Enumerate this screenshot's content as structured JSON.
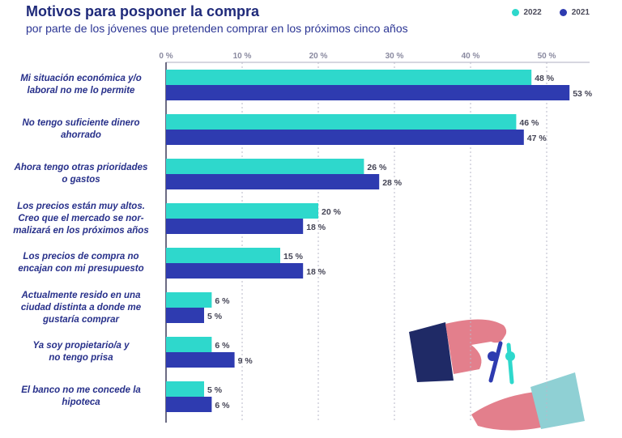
{
  "title": "Motivos para posponer la compra",
  "subtitle": "por parte de los jóvenes que pretenden comprar en los próximos cinco años",
  "legend": [
    {
      "label": "2022",
      "color": "#2ed8cc"
    },
    {
      "label": "2021",
      "color": "#2e3bb0"
    }
  ],
  "chart_data": {
    "type": "bar",
    "orientation": "horizontal",
    "title": "Motivos para posponer la compra",
    "xlim": [
      0,
      55
    ],
    "ticks": [
      "0 %",
      "10 %",
      "20 %",
      "30 %",
      "40 %",
      "50 %"
    ],
    "tick_values": [
      0,
      10,
      20,
      30,
      40,
      50
    ],
    "categories": [
      [
        "Mi situación económica y/o",
        "laboral no me lo permite"
      ],
      [
        "No tengo suficiente dinero",
        "ahorrado"
      ],
      [
        "Ahora tengo otras prioridades",
        "o gastos"
      ],
      [
        "Los precios están muy altos.",
        "Creo que el mercado se nor-",
        "malizará en los próximos años"
      ],
      [
        "Los precios de compra no",
        "encajan con mi presupuesto"
      ],
      [
        "Actualmente resido en una",
        "ciudad distinta a donde me",
        "gustaría comprar"
      ],
      [
        "Ya soy propietario/a y",
        "no tengo prisa"
      ],
      [
        "El banco no me concede la",
        "hipoteca"
      ]
    ],
    "series": [
      {
        "name": "2022",
        "color": "#2ed8cc",
        "values": [
          48,
          46,
          26,
          20,
          15,
          6,
          6,
          5
        ],
        "labels": [
          "48 %",
          "46 %",
          "26 %",
          "20 %",
          "15 %",
          "6 %",
          "6 %",
          "5 %"
        ]
      },
      {
        "name": "2021",
        "color": "#2e3bb0",
        "values": [
          53,
          47,
          28,
          18,
          18,
          5,
          9,
          6
        ],
        "labels": [
          "53 %",
          "47 %",
          "28 %",
          "18 %",
          "18 %",
          "5 %",
          "9 %",
          "6 %"
        ]
      }
    ]
  }
}
